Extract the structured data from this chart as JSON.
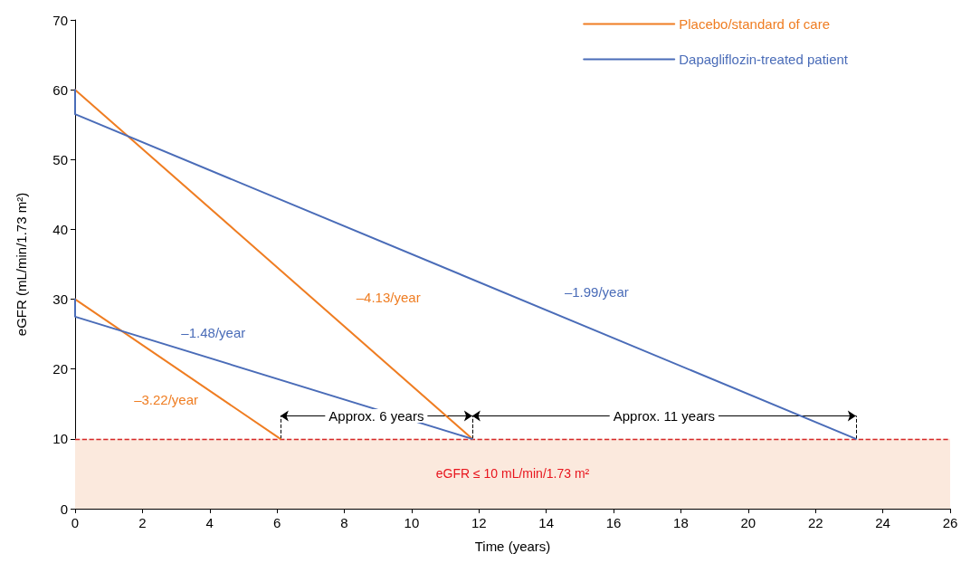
{
  "chart_data": {
    "type": "line",
    "xlabel": "Time (years)",
    "ylabel": "eGFR (mL/min/1.73 m²)",
    "xlim": [
      0,
      26
    ],
    "xticks": [
      0,
      2,
      4,
      6,
      8,
      10,
      12,
      14,
      16,
      18,
      20,
      22,
      24,
      26
    ],
    "ylim": [
      0,
      70
    ],
    "yticks": [
      0,
      10,
      20,
      30,
      40,
      50,
      60,
      70
    ],
    "grid": false,
    "legend": "top right",
    "marker": "none",
    "line_style": "solid",
    "series": [
      {
        "name": "Placebo/standard of care",
        "color": "#ef7d22",
        "x": [
          0,
          11.8
        ],
        "values": [
          60,
          10
        ]
      },
      {
        "name": "Dapagliflozin-treated patient",
        "color": "#4a6cb8",
        "x": [
          0,
          0,
          23.2
        ],
        "values": [
          60,
          56.5,
          10
        ]
      },
      {
        "color": "#ef7d22",
        "x": [
          0,
          6.1
        ],
        "values": [
          30,
          10
        ]
      },
      {
        "color": "#4a6cb8",
        "x": [
          0,
          0,
          11.8
        ],
        "values": [
          30,
          27.5,
          10
        ]
      }
    ],
    "ref_lines": [
      {
        "axis": "y",
        "value": 10,
        "color": "#d62728",
        "line_style": "dashed"
      }
    ],
    "bands": [
      {
        "axis": "y",
        "from": 0,
        "to": 10,
        "label": "eGFR ≤ 10 mL/min/1.73 m²",
        "color": "#fbe9dd"
      }
    ],
    "annotations": [
      "–4.13/year",
      "–1.99/year",
      "–1.48/year",
      "–3.22/year",
      "Approx. 6 years",
      "Approx. 11 years"
    ]
  }
}
